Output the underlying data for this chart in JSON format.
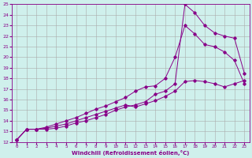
{
  "xlabel": "Windchill (Refroidissement éolien,°C)",
  "bg_color": "#cff0ec",
  "grid_color": "#aaaaaa",
  "line_color": "#880088",
  "xlim": [
    -0.5,
    23.5
  ],
  "ylim": [
    12,
    25
  ],
  "xticks": [
    0,
    1,
    2,
    3,
    4,
    5,
    6,
    7,
    8,
    9,
    10,
    11,
    12,
    13,
    14,
    15,
    16,
    17,
    18,
    19,
    20,
    21,
    22,
    23
  ],
  "yticks": [
    12,
    13,
    14,
    15,
    16,
    17,
    18,
    19,
    20,
    21,
    22,
    23,
    24,
    25
  ],
  "line1_x": [
    0,
    1,
    2,
    3,
    4,
    5,
    6,
    7,
    8,
    9,
    10,
    11,
    12,
    13,
    14,
    15,
    16,
    17,
    18,
    19,
    20,
    21,
    22,
    23
  ],
  "line1_y": [
    12.2,
    13.2,
    13.2,
    13.3,
    13.5,
    13.7,
    14.0,
    14.3,
    14.6,
    14.9,
    15.2,
    15.5,
    15.3,
    15.6,
    15.9,
    16.3,
    16.8,
    17.7,
    17.8,
    17.7,
    17.5,
    17.2,
    17.5,
    17.8
  ],
  "line2_x": [
    0,
    1,
    2,
    3,
    4,
    5,
    6,
    7,
    8,
    9,
    10,
    11,
    12,
    13,
    14,
    15,
    16,
    17,
    18,
    19,
    20,
    21,
    22,
    23
  ],
  "line2_y": [
    12.2,
    13.2,
    13.2,
    13.4,
    13.7,
    14.0,
    14.3,
    14.7,
    15.1,
    15.4,
    15.8,
    16.2,
    16.8,
    17.2,
    17.3,
    18.0,
    20.0,
    23.0,
    22.2,
    21.2,
    21.0,
    20.5,
    19.7,
    17.5
  ],
  "line3_x": [
    0,
    1,
    2,
    3,
    4,
    5,
    6,
    7,
    8,
    9,
    10,
    11,
    12,
    13,
    14,
    15,
    16,
    17,
    18,
    19,
    20,
    21,
    22,
    23
  ],
  "line3_y": [
    12.2,
    13.2,
    13.2,
    13.2,
    13.3,
    13.5,
    13.8,
    14.0,
    14.3,
    14.6,
    15.0,
    15.3,
    15.5,
    15.8,
    16.5,
    16.8,
    17.5,
    25.0,
    24.2,
    23.0,
    22.3,
    22.0,
    21.8,
    18.5
  ]
}
